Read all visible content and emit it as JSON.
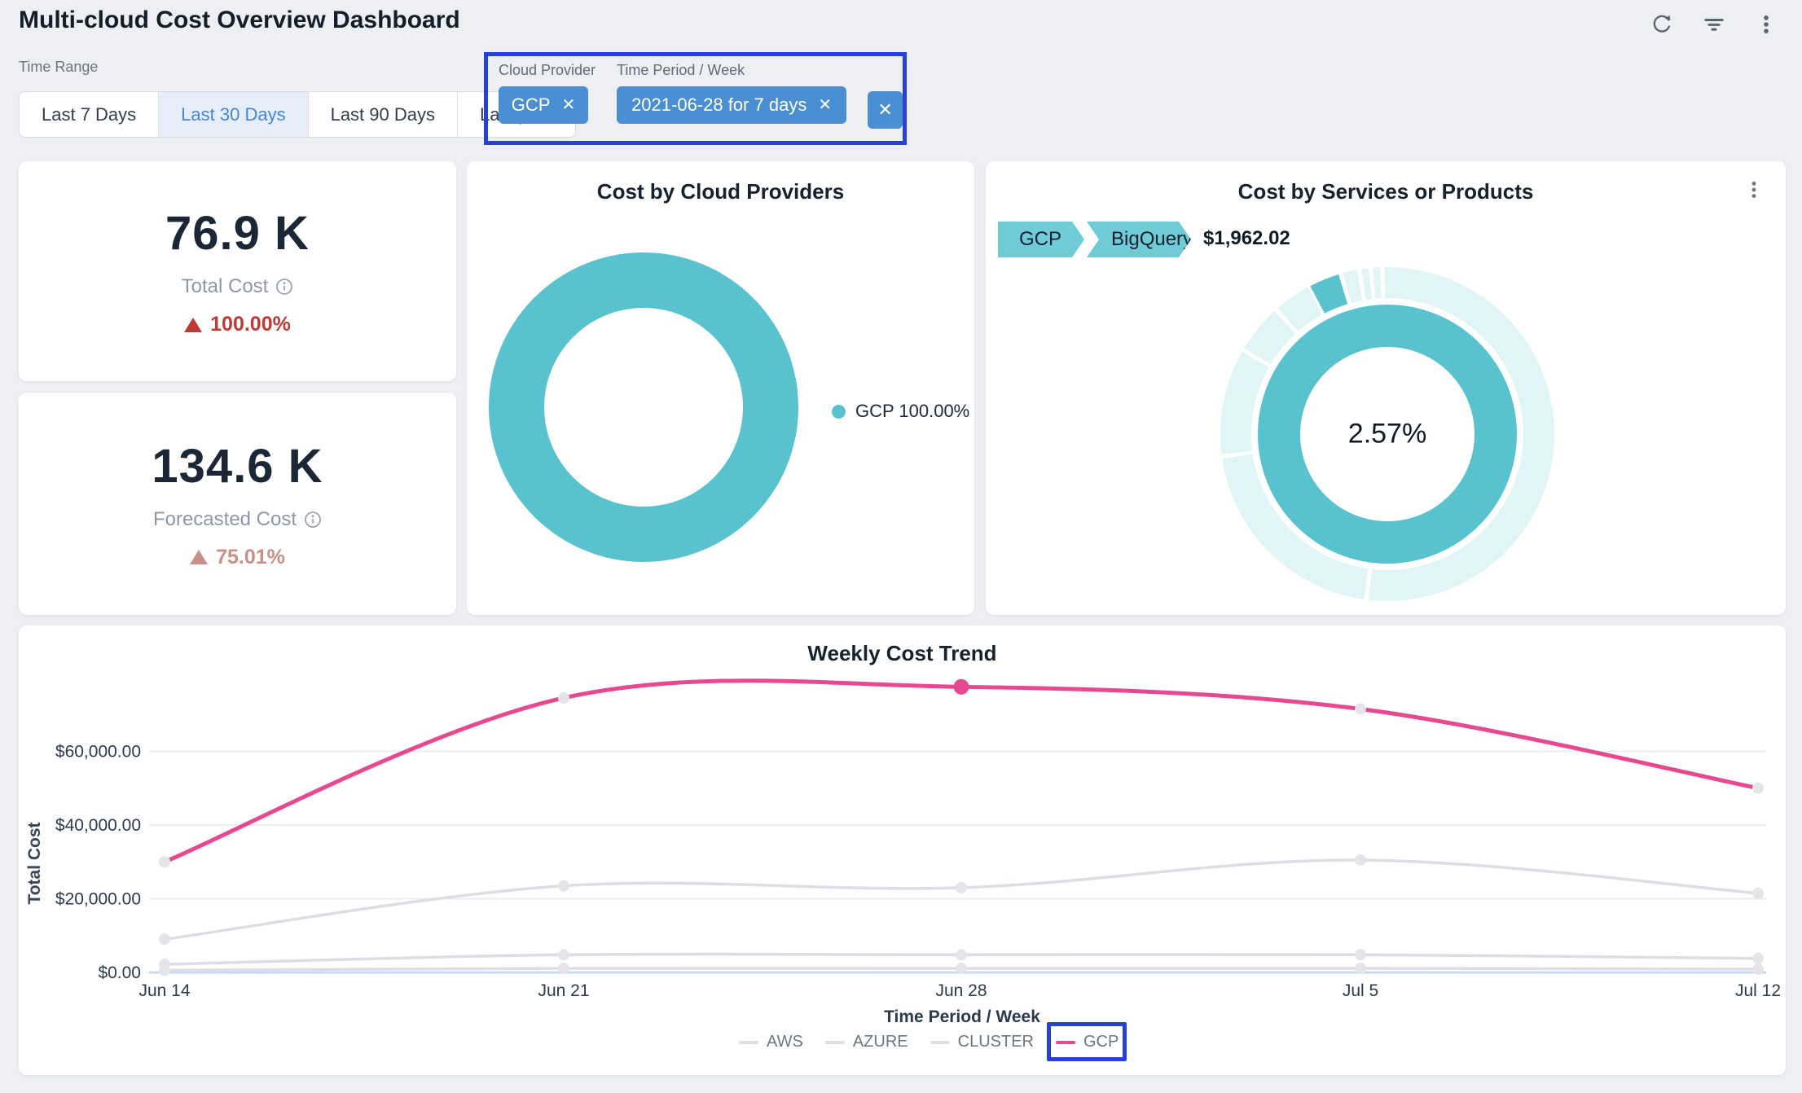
{
  "colors": {
    "accent_blue": "#4a8fd3",
    "annotation_blue": "#2840d6",
    "selected_blue": "#4186e0",
    "teal": "#58c3ce",
    "teal_light": "#e1f4f6",
    "pink": "#e8488f",
    "red": "#c23934",
    "salmon": "#c98f88",
    "line_gray": "#dcdee3"
  },
  "header": {
    "title": "Multi-cloud Cost Overview Dashboard",
    "icons": [
      "refresh-icon",
      "filter-icon",
      "more-options-icon"
    ]
  },
  "time_range": {
    "label": "Time Range",
    "options": [
      "Last 7 Days",
      "Last 30 Days",
      "Last 90 Days",
      "Last year"
    ],
    "selected": "Last 30 Days"
  },
  "applied_filters": {
    "cloud_provider": {
      "label": "Cloud Provider",
      "value": "GCP"
    },
    "time_period": {
      "label": "Time Period / Week",
      "value": "2021-06-28 for 7 days"
    },
    "clear_label": "✕"
  },
  "kpis": [
    {
      "value": "76.9 K",
      "label": "Total Cost",
      "delta": "100.00%",
      "direction": "up",
      "delta_color": "#c23934"
    },
    {
      "value": "134.6 K",
      "label": "Forecasted Cost",
      "delta": "75.01%",
      "direction": "up",
      "delta_color": "#c98f88"
    }
  ],
  "chart_data": [
    {
      "type": "pie",
      "donut": true,
      "title": "Cost by Cloud Providers",
      "slices": [
        {
          "label": "GCP",
          "value": 100.0,
          "color": "#58c3ce"
        }
      ],
      "legend": [
        "GCP 100.00%"
      ],
      "legend_position": "right"
    },
    {
      "type": "pie",
      "subtype": "sunburst-donut",
      "title": "Cost by Services or Products",
      "inner_ring": [
        {
          "label": "GCP",
          "value_pct": 100.0,
          "color": "#58c3ce"
        }
      ],
      "outer_ring_note": "services breakdown, mostly unhighlighted",
      "highlighted_slice": {
        "path": [
          "GCP",
          "BigQuery"
        ],
        "value_pct": 2.57,
        "amount": "$1,962.02",
        "color": "#58c3ce"
      },
      "breadcrumb": [
        "GCP",
        "BigQuery"
      ],
      "amount": "$1,962.02",
      "center_label": "2.57%"
    },
    {
      "type": "line",
      "title": "Weekly Cost Trend",
      "xlabel": "Time Period / Week",
      "ylabel": "Total Cost",
      "categories": [
        "Jun 14",
        "Jun 21",
        "Jun 28",
        "Jul 5",
        "Jul 12"
      ],
      "yticks": [
        "$0.00",
        "$20,000.00",
        "$40,000.00",
        "$60,000.00"
      ],
      "ytick_values": [
        0,
        20000,
        40000,
        60000
      ],
      "ylim": [
        0,
        80000
      ],
      "grid": true,
      "legend_position": "bottom",
      "series": [
        {
          "name": "AWS",
          "color": "#dcdee3",
          "values": [
            9000,
            23500,
            23000,
            30500,
            21500
          ]
        },
        {
          "name": "AZURE",
          "color": "#dcdee3",
          "values": [
            2200,
            4800,
            4800,
            4800,
            3800
          ]
        },
        {
          "name": "CLUSTER",
          "color": "#dcdee3",
          "values": [
            600,
            1100,
            1100,
            1100,
            900
          ]
        },
        {
          "name": "GCP",
          "color": "#e8488f",
          "values": [
            30000,
            74500,
            77500,
            71500,
            50000
          ]
        }
      ],
      "highlight_point": {
        "series": "GCP",
        "category": "Jun 28"
      }
    }
  ]
}
